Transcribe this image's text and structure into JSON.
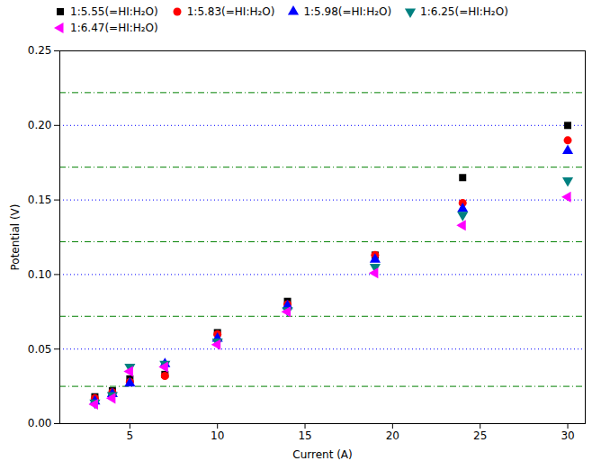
{
  "chart_data": {
    "type": "scatter",
    "xlabel": "Current (A)",
    "ylabel": "Potential (V)",
    "x": [
      3,
      4,
      5,
      7,
      10,
      14,
      19,
      24,
      30
    ],
    "series": [
      {
        "name": "1:5.55(=HI:H₂O)",
        "color": "black",
        "marker": "square",
        "values": [
          0.018,
          0.022,
          0.03,
          0.033,
          0.061,
          0.082,
          0.113,
          0.165,
          0.2
        ]
      },
      {
        "name": "1:5.83(=HI:H₂O)",
        "color": "red",
        "marker": "circle",
        "values": [
          0.017,
          0.021,
          0.028,
          0.032,
          0.06,
          0.08,
          0.113,
          0.148,
          0.19
        ]
      },
      {
        "name": "1:5.98(=HI:H₂O)",
        "color": "blue",
        "marker": "triangle-up",
        "values": [
          0.015,
          0.02,
          0.027,
          0.04,
          0.057,
          0.079,
          0.11,
          0.144,
          0.183
        ]
      },
      {
        "name": "1:6.25(=HI:H₂O)",
        "color": "#008080",
        "marker": "triangle-down",
        "values": [
          0.014,
          0.019,
          0.038,
          0.04,
          0.055,
          0.076,
          0.105,
          0.14,
          0.163
        ]
      },
      {
        "name": "1:6.47(=HI:H₂O)",
        "color": "magenta",
        "marker": "triangle-left",
        "values": [
          0.013,
          0.017,
          0.035,
          0.038,
          0.053,
          0.075,
          0.101,
          0.133,
          0.152
        ]
      }
    ],
    "hlines": [
      {
        "values": [
          0.05,
          0.1,
          0.15,
          0.2
        ],
        "color": "blue",
        "line_style": "dotted"
      },
      {
        "values": [
          0.025,
          0.072,
          0.122,
          0.172,
          0.222
        ],
        "color": "green",
        "line_style": "dashdot"
      }
    ],
    "xlim": [
      1,
      31
    ],
    "ylim": [
      0.0,
      0.25
    ],
    "xticks": [
      5,
      10,
      15,
      20,
      25,
      30
    ],
    "yticks": [
      {
        "value": 0.0,
        "label": "0.00"
      },
      {
        "value": 0.05,
        "label": "0.05"
      },
      {
        "value": 0.1,
        "label": "0.10"
      },
      {
        "value": 0.15,
        "label": "0.15"
      },
      {
        "value": 0.2,
        "label": "0.20"
      },
      {
        "value": 0.25,
        "label": "0.25"
      }
    ]
  }
}
